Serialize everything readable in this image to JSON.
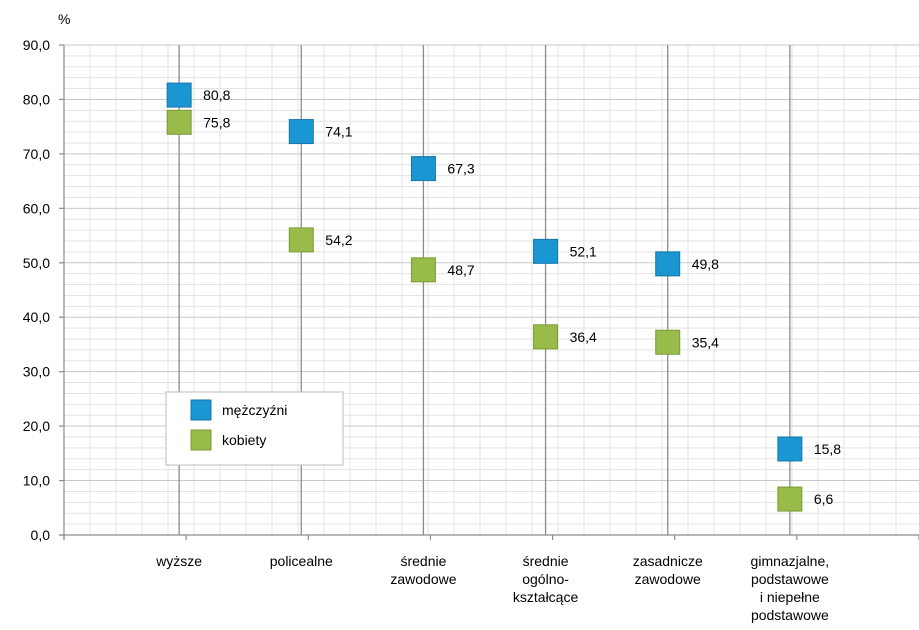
{
  "chart_data": {
    "type": "scatter",
    "unit_label": "%",
    "categories": [
      [
        "wyższe"
      ],
      [
        "policealne"
      ],
      [
        "średnie",
        "zawodowe"
      ],
      [
        "średnie",
        "ogólno-",
        "kształcące"
      ],
      [
        "zasadnicze",
        "zawodowe"
      ],
      [
        "gimnazjalne,",
        "podstawowe",
        "i niepełne",
        "podstawowe"
      ]
    ],
    "series": [
      {
        "name": "mężczyźni",
        "color": "#1a96d2",
        "values": [
          80.8,
          74.1,
          67.3,
          52.1,
          49.8,
          15.8
        ],
        "labels": [
          "80,8",
          "74,1",
          "67,3",
          "52,1",
          "49,8",
          "15,8"
        ]
      },
      {
        "name": "kobiety",
        "color": "#99bb4a",
        "values": [
          75.8,
          54.2,
          48.7,
          36.4,
          35.4,
          6.6
        ],
        "labels": [
          "75,8",
          "54,2",
          "48,7",
          "36,4",
          "35,4",
          "6,6"
        ]
      }
    ],
    "ylim": [
      0,
      90
    ],
    "yticks": [
      0,
      10,
      20,
      30,
      40,
      50,
      60,
      70,
      80,
      90
    ],
    "ytick_labels": [
      "0,0",
      "10,0",
      "20,0",
      "30,0",
      "40,0",
      "50,0",
      "60,0",
      "70,0",
      "80,0",
      "90,0"
    ],
    "grid": true,
    "legend_position": "lower-left"
  }
}
